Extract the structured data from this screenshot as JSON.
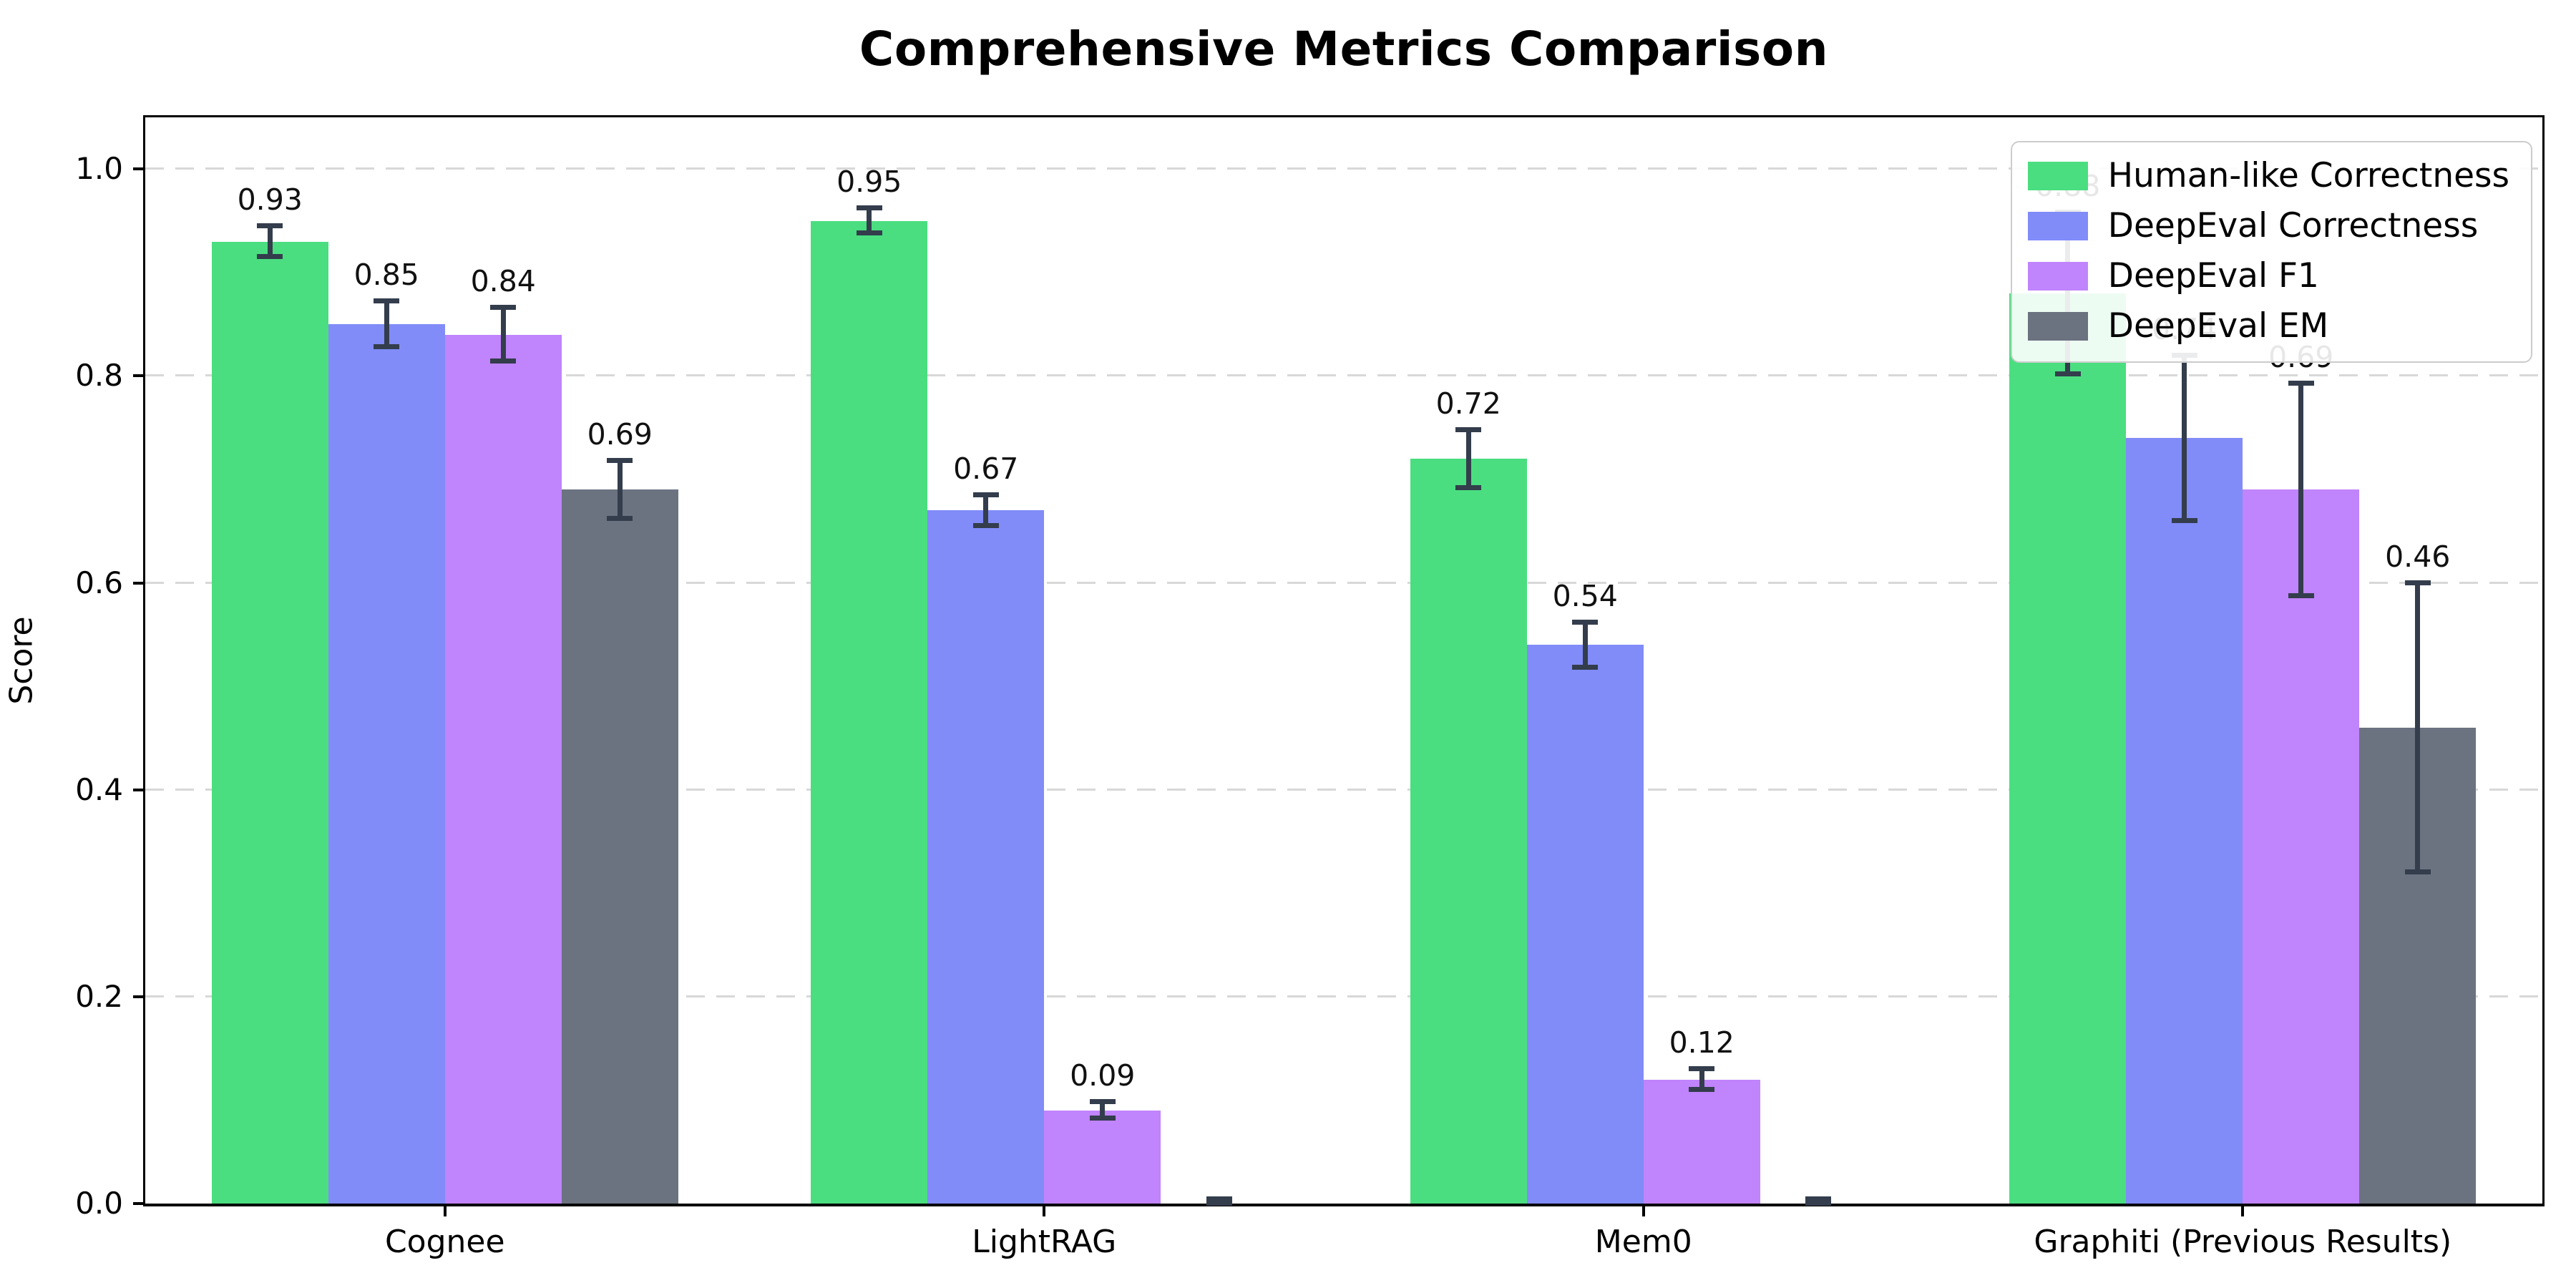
{
  "title": "Comprehensive Metrics Comparison",
  "chart_data": {
    "type": "bar",
    "title": "Comprehensive Metrics Comparison",
    "xlabel": "",
    "ylabel": "Score",
    "categories": [
      "Cognee",
      "LightRAG",
      "Mem0",
      "Graphiti (Previous Results)"
    ],
    "y_ticks": [
      "0.0",
      "0.2",
      "0.4",
      "0.6",
      "0.8",
      "1.0"
    ],
    "ylim": [
      0,
      1.05
    ],
    "grid": "horizontal-dashed",
    "grid_color": "#d8d8d8",
    "legend_position": "upper-right",
    "error_bar_color": "#333d4c",
    "series": [
      {
        "name": "Human-like Correctness",
        "color": "#4ade80",
        "values": [
          0.93,
          0.95,
          0.72,
          0.88
        ],
        "errors": [
          0.015,
          0.012,
          0.028,
          0.078
        ],
        "labels": [
          "0.93",
          "0.95",
          "0.72",
          "0.88"
        ]
      },
      {
        "name": "DeepEval Correctness",
        "color": "#818cf8",
        "values": [
          0.85,
          0.67,
          0.54,
          0.74
        ],
        "errors": [
          0.022,
          0.015,
          0.022,
          0.08
        ],
        "labels": [
          "0.85",
          "0.67",
          "0.54",
          "0.74"
        ]
      },
      {
        "name": "DeepEval F1",
        "color": "#c084fc",
        "values": [
          0.84,
          0.09,
          0.12,
          0.69
        ],
        "errors": [
          0.026,
          0.008,
          0.01,
          0.103
        ],
        "labels": [
          "0.84",
          "0.09",
          "0.12",
          "0.69"
        ]
      },
      {
        "name": "DeepEval EM",
        "color": "#6b7280",
        "values": [
          0.69,
          0.0,
          0.0,
          0.46
        ],
        "errors": [
          0.028,
          0.004,
          0.004,
          0.14
        ],
        "labels": [
          "0.69",
          "",
          "",
          "0.46"
        ]
      }
    ]
  }
}
